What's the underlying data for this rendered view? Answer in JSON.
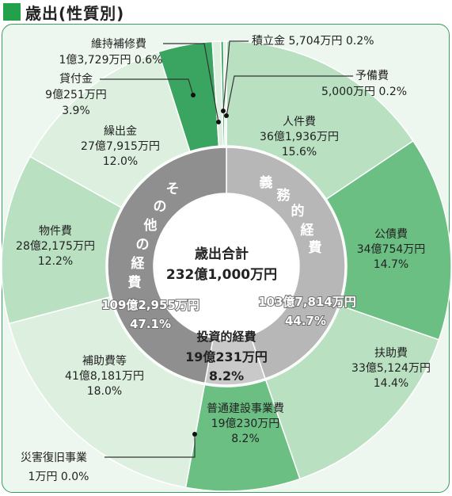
{
  "header": {
    "title": "歳出(性質別)"
  },
  "colors": {
    "ring_light": "#ddf0e0",
    "ring_mid": "#b9e0c1",
    "ring_dark": "#6bbf82",
    "ring_darker": "#3aa560",
    "inner_left": "#8f8f8f",
    "inner_right": "#b7b7b7",
    "inner_bottom": "#c9c9c9",
    "frame_border": "#3a9b5c",
    "leader": "#333333"
  },
  "chart_data": {
    "type": "pie",
    "title": "歳出(性質別)",
    "center": {
      "line1": "歳出合計",
      "line2": "232億1,000万円"
    },
    "total": "232億1,000万円",
    "outer": [
      {
        "name": "人件費",
        "amount": "36億1,936万円",
        "percent_label": "15.6%",
        "value": 15.6,
        "color": "#b9e0c1"
      },
      {
        "name": "公債費",
        "amount": "34億754万円",
        "percent_label": "14.7%",
        "value": 14.7,
        "color": "#6bbf82"
      },
      {
        "name": "扶助費",
        "amount": "33億5,124万円",
        "percent_label": "14.4%",
        "value": 14.4,
        "color": "#b9e0c1"
      },
      {
        "name": "普通建設事業費",
        "amount": "19億230万円",
        "percent_label": "8.2%",
        "value": 8.2,
        "color": "#6bbf82"
      },
      {
        "name": "災害復旧事業",
        "amount": "1万円",
        "percent_label": "0.0%",
        "value": 0.0,
        "color": "#6bbf82"
      },
      {
        "name": "補助費等",
        "amount": "41億8,181万円",
        "percent_label": "18.0%",
        "value": 18.0,
        "color": "#ddf0e0"
      },
      {
        "name": "物件費",
        "amount": "28億2,175万円",
        "percent_label": "12.2%",
        "value": 12.2,
        "color": "#b9e0c1"
      },
      {
        "name": "繰出金",
        "amount": "27億7,915万円",
        "percent_label": "12.0%",
        "value": 12.0,
        "color": "#ddf0e0"
      },
      {
        "name": "貸付金",
        "amount": "9億251万円",
        "percent_label": "3.9%",
        "value": 3.9,
        "color": "#3aa560"
      },
      {
        "name": "維持補修費",
        "amount": "1億3,729万円",
        "percent_label": "0.6%",
        "value": 0.6,
        "color": "#ddf0e0"
      },
      {
        "name": "積立金",
        "amount": "5,704万円",
        "percent_label": "0.2%",
        "value": 0.2,
        "color": "#3aa560"
      },
      {
        "name": "予備費",
        "amount": "5,000万円",
        "percent_label": "0.2%",
        "value": 0.2,
        "color": "#ddf0e0"
      }
    ],
    "inner": [
      {
        "name": "義務的経費",
        "amount": "103億7,814万円",
        "percent_label": "44.7%",
        "value": 44.7,
        "color": "#b7b7b7"
      },
      {
        "name": "投資的経費",
        "amount": "19億231万円",
        "percent_label": "8.2%",
        "value": 8.2,
        "color": "#c9c9c9"
      },
      {
        "name": "その他の経費",
        "amount": "109億2,955万円",
        "percent_label": "47.1%",
        "value": 47.1,
        "color": "#8f8f8f"
      }
    ]
  }
}
